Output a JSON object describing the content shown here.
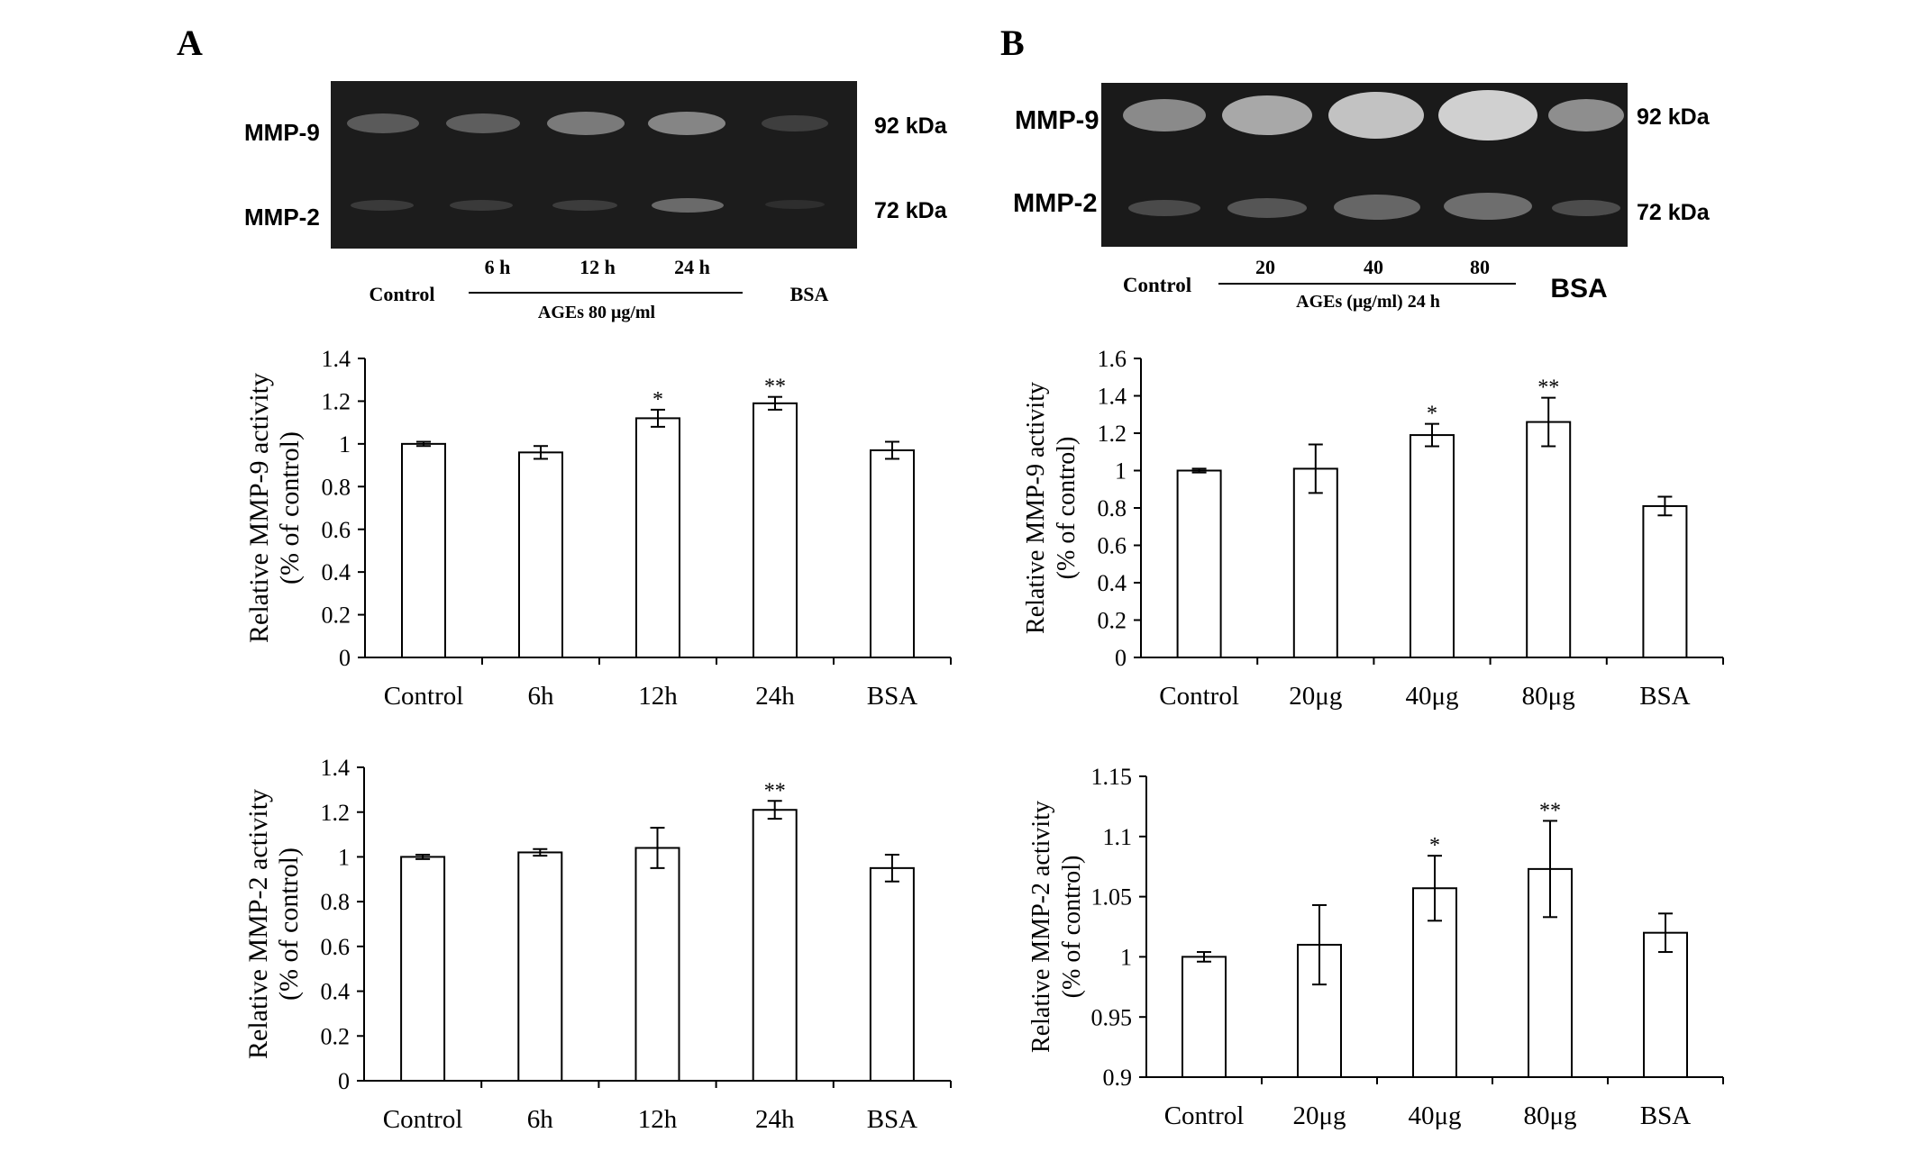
{
  "panels": [
    {
      "letter": "A",
      "gel": {
        "left_labels": [
          "MMP-9",
          "MMP-2"
        ],
        "right_labels": [
          "92 kDa",
          "72 kDa"
        ],
        "control_label": "Control",
        "bsa_label": "BSA",
        "lanes": [
          "6 h",
          "12 h",
          "24 h"
        ],
        "condition": "AGEs 80 μg/ml"
      }
    },
    {
      "letter": "B",
      "gel": {
        "left_labels": [
          "MMP-9",
          "MMP-2"
        ],
        "right_labels": [
          "92 kDa",
          "72 kDa"
        ],
        "control_label": "Control",
        "bsa_label": "BSA",
        "lanes": [
          "20",
          "40",
          "80"
        ],
        "condition": "AGEs (μg/ml) 24 h"
      }
    }
  ],
  "chart_data": [
    {
      "type": "bar",
      "panel": "A",
      "ylabel": [
        "Relative MMP-9 activity",
        "(% of control)"
      ],
      "categories": [
        "Control",
        "6h",
        "12h",
        "24h",
        "BSA"
      ],
      "values": [
        1.0,
        0.96,
        1.12,
        1.19,
        0.97
      ],
      "errors": [
        0.01,
        0.03,
        0.04,
        0.03,
        0.04
      ],
      "significance": [
        "",
        "",
        "*",
        "**",
        ""
      ],
      "ylim": [
        0,
        1.4
      ],
      "yticks": [
        "0",
        "0.2",
        "0.4",
        "0.6",
        "0.8",
        "1",
        "1.2",
        "1.4"
      ],
      "grid": false
    },
    {
      "type": "bar",
      "panel": "A",
      "ylabel": [
        "Relative MMP-2 activity",
        "(% of control)"
      ],
      "categories": [
        "Control",
        "6h",
        "12h",
        "24h",
        "BSA"
      ],
      "values": [
        1.0,
        1.02,
        1.04,
        1.21,
        0.95
      ],
      "errors": [
        0.01,
        0.015,
        0.09,
        0.04,
        0.06
      ],
      "significance": [
        "",
        "",
        "",
        "**",
        ""
      ],
      "ylim": [
        0,
        1.4
      ],
      "yticks": [
        "0",
        "0.2",
        "0.4",
        "0.6",
        "0.8",
        "1",
        "1.2",
        "1.4"
      ],
      "grid": false
    },
    {
      "type": "bar",
      "panel": "B",
      "ylabel": [
        "Relative MMP-9 activity",
        "(% of control)"
      ],
      "categories": [
        "Control",
        "20μg",
        "40μg",
        "80μg",
        "BSA"
      ],
      "values": [
        1.0,
        1.01,
        1.19,
        1.26,
        0.81
      ],
      "errors": [
        0.01,
        0.13,
        0.06,
        0.13,
        0.05
      ],
      "significance": [
        "",
        "",
        "*",
        "**",
        ""
      ],
      "ylim": [
        0,
        1.6
      ],
      "yticks": [
        "0",
        "0.2",
        "0.4",
        "0.6",
        "0.8",
        "1",
        "1.2",
        "1.4",
        "1.6"
      ],
      "grid": false
    },
    {
      "type": "bar",
      "panel": "B",
      "ylabel": [
        "Relative MMP-2 activity",
        "(% of control)"
      ],
      "categories": [
        "Control",
        "20μg",
        "40μg",
        "80μg",
        "BSA"
      ],
      "values": [
        1.0,
        1.01,
        1.057,
        1.073,
        1.02
      ],
      "errors": [
        0.004,
        0.033,
        0.027,
        0.04,
        0.016
      ],
      "significance": [
        "",
        "",
        "*",
        "**",
        ""
      ],
      "ylim": [
        0.9,
        1.15
      ],
      "yticks": [
        "0.9",
        "0.95",
        "1",
        "1.05",
        "1.1",
        "1.15"
      ],
      "grid": false
    }
  ]
}
